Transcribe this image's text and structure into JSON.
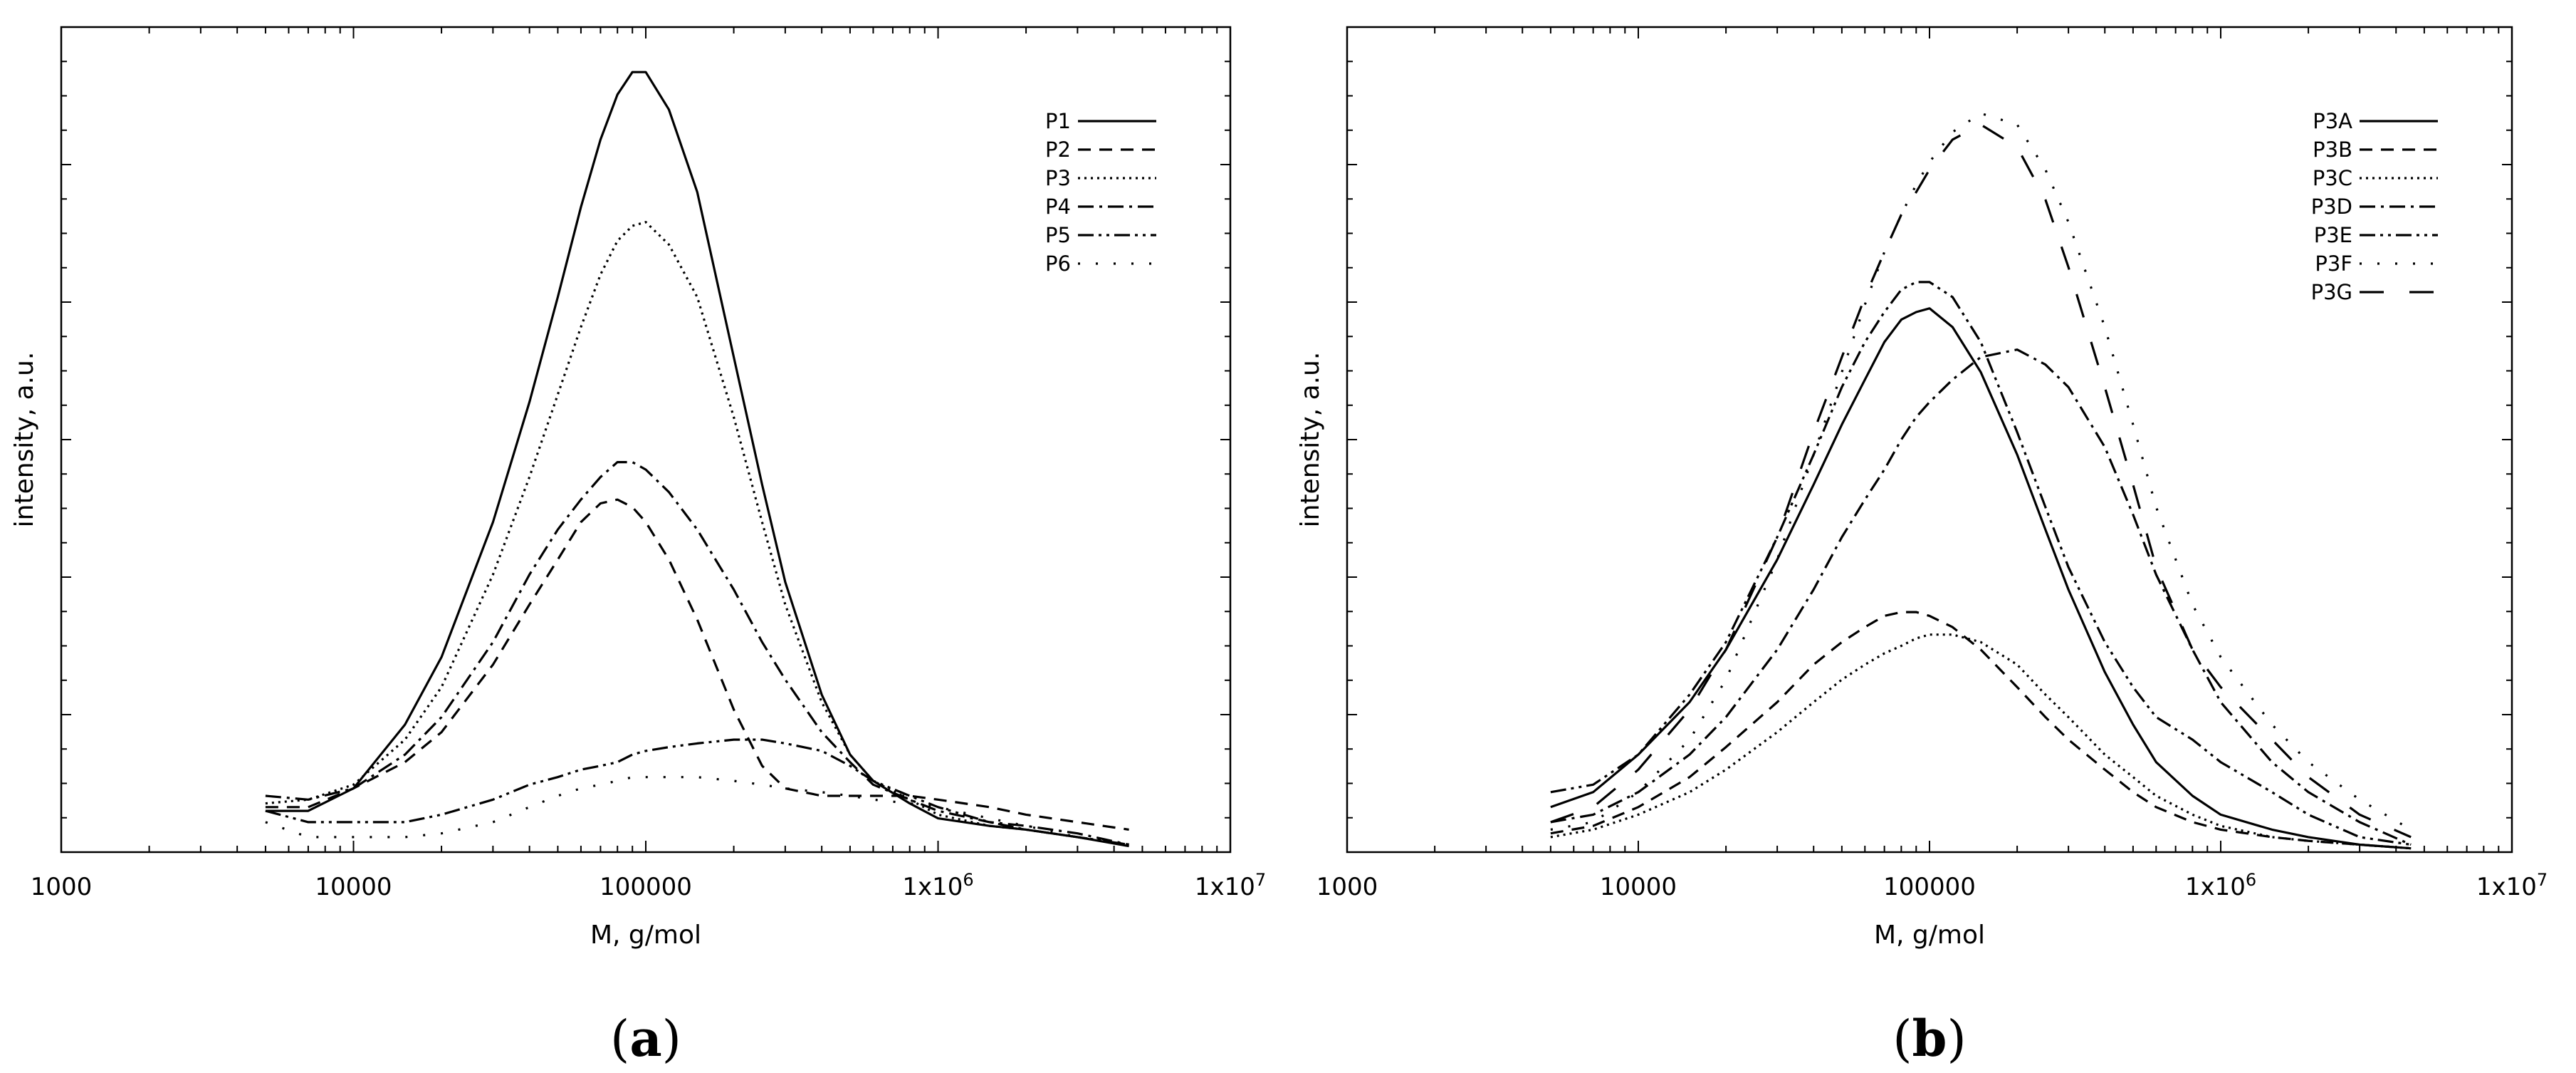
{
  "chart_data": [
    {
      "type": "line",
      "panel_label": "a",
      "xlabel": "M, g/mol",
      "ylabel": "intensity, a.u.",
      "x_scale": "log",
      "xlim": [
        1000,
        10000000
      ],
      "ylim": [
        0,
        1.1
      ],
      "y_ticks_labeled": false,
      "x_ticks": [
        {
          "value": 1000,
          "label": "1000"
        },
        {
          "value": 10000,
          "label": "10000"
        },
        {
          "value": 100000,
          "label": "100000"
        },
        {
          "value": 1000000,
          "label": "1x10",
          "exp": "6"
        },
        {
          "value": 10000000,
          "label": "1x10",
          "exp": "7"
        }
      ],
      "legend_position": "top-right",
      "series": [
        {
          "name": "P1",
          "dash": "solid",
          "x": [
            5000,
            7000,
            10000,
            15000,
            20000,
            30000,
            40000,
            50000,
            60000,
            70000,
            80000,
            90000,
            100000,
            120000,
            150000,
            200000,
            250000,
            300000,
            400000,
            500000,
            600000,
            800000,
            1000000,
            1500000,
            2000000,
            3000000,
            4500000
          ],
          "y": [
            0.055,
            0.055,
            0.085,
            0.17,
            0.26,
            0.44,
            0.6,
            0.74,
            0.86,
            0.95,
            1.01,
            1.04,
            1.04,
            0.99,
            0.88,
            0.66,
            0.49,
            0.36,
            0.21,
            0.13,
            0.095,
            0.065,
            0.045,
            0.035,
            0.03,
            0.02,
            0.008
          ]
        },
        {
          "name": "P2",
          "dash": "dashed",
          "x": [
            5000,
            7000,
            10000,
            15000,
            20000,
            30000,
            40000,
            50000,
            60000,
            70000,
            80000,
            90000,
            100000,
            120000,
            150000,
            200000,
            250000,
            300000,
            400000,
            500000,
            600000,
            800000,
            1000000,
            1500000,
            2000000,
            3000000,
            4500000
          ],
          "y": [
            0.06,
            0.06,
            0.085,
            0.12,
            0.16,
            0.25,
            0.33,
            0.39,
            0.44,
            0.465,
            0.47,
            0.46,
            0.44,
            0.39,
            0.31,
            0.19,
            0.115,
            0.085,
            0.075,
            0.075,
            0.075,
            0.075,
            0.07,
            0.06,
            0.05,
            0.04,
            0.03
          ]
        },
        {
          "name": "P3",
          "dash": "dotted",
          "x": [
            5000,
            7000,
            10000,
            15000,
            20000,
            30000,
            40000,
            50000,
            60000,
            70000,
            80000,
            90000,
            100000,
            120000,
            150000,
            200000,
            250000,
            300000,
            400000,
            500000,
            600000,
            800000,
            1000000,
            1500000,
            2000000,
            3000000,
            4500000
          ],
          "y": [
            0.065,
            0.07,
            0.09,
            0.15,
            0.22,
            0.37,
            0.5,
            0.61,
            0.7,
            0.77,
            0.815,
            0.835,
            0.84,
            0.81,
            0.74,
            0.58,
            0.44,
            0.33,
            0.2,
            0.13,
            0.095,
            0.07,
            0.05,
            0.035,
            0.03,
            0.02,
            0.01
          ]
        },
        {
          "name": "P4",
          "dash": "dashdot",
          "x": [
            5000,
            7000,
            10000,
            15000,
            20000,
            30000,
            40000,
            50000,
            60000,
            70000,
            80000,
            90000,
            100000,
            120000,
            150000,
            200000,
            250000,
            300000,
            400000,
            500000,
            600000,
            800000,
            1000000,
            1500000,
            2000000,
            3000000,
            4500000
          ],
          "y": [
            0.075,
            0.07,
            0.085,
            0.13,
            0.18,
            0.28,
            0.37,
            0.43,
            0.47,
            0.5,
            0.52,
            0.52,
            0.51,
            0.48,
            0.43,
            0.35,
            0.28,
            0.23,
            0.16,
            0.12,
            0.09,
            0.07,
            0.055,
            0.04,
            0.035,
            0.025,
            0.01
          ]
        },
        {
          "name": "P5",
          "dash": "dashdotdot",
          "x": [
            5000,
            7000,
            10000,
            15000,
            20000,
            30000,
            40000,
            50000,
            60000,
            70000,
            80000,
            90000,
            100000,
            120000,
            150000,
            200000,
            250000,
            300000,
            400000,
            500000,
            600000,
            800000,
            1000000,
            1500000,
            2000000,
            3000000,
            4500000
          ],
          "y": [
            0.055,
            0.04,
            0.04,
            0.04,
            0.05,
            0.07,
            0.09,
            0.1,
            0.11,
            0.115,
            0.12,
            0.13,
            0.135,
            0.14,
            0.145,
            0.15,
            0.15,
            0.145,
            0.135,
            0.115,
            0.095,
            0.075,
            0.06,
            0.04,
            0.03,
            0.02,
            0.01
          ]
        },
        {
          "name": "P6",
          "dash": "sparse",
          "x": [
            5000,
            7000,
            10000,
            15000,
            20000,
            30000,
            40000,
            50000,
            60000,
            70000,
            80000,
            90000,
            100000,
            120000,
            150000,
            200000,
            250000,
            300000,
            400000,
            500000,
            600000,
            800000,
            1000000,
            1500000,
            2000000,
            3000000,
            4500000
          ],
          "y": [
            0.04,
            0.02,
            0.02,
            0.02,
            0.025,
            0.04,
            0.06,
            0.075,
            0.085,
            0.09,
            0.095,
            0.1,
            0.1,
            0.1,
            0.1,
            0.095,
            0.09,
            0.085,
            0.08,
            0.075,
            0.07,
            0.065,
            0.06,
            0.045,
            0.035,
            0.02,
            0.01
          ]
        }
      ]
    },
    {
      "type": "line",
      "panel_label": "b",
      "xlabel": "M, g/mol",
      "ylabel": "intensity, a.u.",
      "x_scale": "log",
      "xlim": [
        1000,
        10000000
      ],
      "ylim": [
        0,
        1.1
      ],
      "y_ticks_labeled": false,
      "x_ticks": [
        {
          "value": 1000,
          "label": "1000"
        },
        {
          "value": 10000,
          "label": "10000"
        },
        {
          "value": 100000,
          "label": "100000"
        },
        {
          "value": 1000000,
          "label": "1x10",
          "exp": "6"
        },
        {
          "value": 10000000,
          "label": "1x10",
          "exp": "7"
        }
      ],
      "legend_position": "top-right",
      "series": [
        {
          "name": "P3A",
          "dash": "solid",
          "x": [
            5000,
            7000,
            10000,
            15000,
            20000,
            30000,
            40000,
            50000,
            60000,
            70000,
            80000,
            90000,
            100000,
            120000,
            150000,
            200000,
            250000,
            300000,
            400000,
            500000,
            600000,
            800000,
            1000000,
            1500000,
            2000000,
            3000000,
            4500000
          ],
          "y": [
            0.06,
            0.08,
            0.13,
            0.2,
            0.27,
            0.39,
            0.49,
            0.57,
            0.63,
            0.68,
            0.71,
            0.72,
            0.725,
            0.7,
            0.64,
            0.53,
            0.43,
            0.35,
            0.24,
            0.17,
            0.12,
            0.075,
            0.05,
            0.03,
            0.02,
            0.01,
            0.005
          ]
        },
        {
          "name": "P3B",
          "dash": "dashed",
          "x": [
            5000,
            7000,
            10000,
            15000,
            20000,
            30000,
            40000,
            50000,
            60000,
            70000,
            80000,
            90000,
            100000,
            120000,
            150000,
            200000,
            250000,
            300000,
            400000,
            500000,
            600000,
            800000,
            1000000,
            1500000,
            2000000,
            3000000,
            4500000
          ],
          "y": [
            0.025,
            0.035,
            0.06,
            0.1,
            0.14,
            0.2,
            0.25,
            0.28,
            0.3,
            0.315,
            0.32,
            0.32,
            0.315,
            0.3,
            0.27,
            0.22,
            0.18,
            0.15,
            0.11,
            0.08,
            0.06,
            0.04,
            0.03,
            0.02,
            0.015,
            0.01,
            0.005
          ]
        },
        {
          "name": "P3C",
          "dash": "dotted",
          "x": [
            5000,
            7000,
            10000,
            15000,
            20000,
            30000,
            40000,
            50000,
            60000,
            70000,
            80000,
            90000,
            100000,
            120000,
            150000,
            200000,
            250000,
            300000,
            400000,
            500000,
            600000,
            800000,
            1000000,
            1500000,
            2000000,
            3000000,
            4500000
          ],
          "y": [
            0.02,
            0.03,
            0.05,
            0.08,
            0.11,
            0.16,
            0.2,
            0.23,
            0.25,
            0.265,
            0.275,
            0.285,
            0.29,
            0.29,
            0.28,
            0.25,
            0.21,
            0.18,
            0.13,
            0.1,
            0.075,
            0.05,
            0.035,
            0.02,
            0.015,
            0.01,
            0.005
          ]
        },
        {
          "name": "P3D",
          "dash": "dashdot",
          "x": [
            5000,
            7000,
            10000,
            15000,
            20000,
            30000,
            40000,
            50000,
            60000,
            70000,
            80000,
            90000,
            100000,
            120000,
            150000,
            200000,
            250000,
            300000,
            400000,
            500000,
            600000,
            800000,
            1000000,
            1500000,
            2000000,
            3000000,
            4500000
          ],
          "y": [
            0.04,
            0.05,
            0.08,
            0.13,
            0.18,
            0.27,
            0.35,
            0.42,
            0.47,
            0.51,
            0.55,
            0.58,
            0.6,
            0.63,
            0.66,
            0.67,
            0.65,
            0.62,
            0.54,
            0.45,
            0.37,
            0.27,
            0.2,
            0.12,
            0.08,
            0.04,
            0.01
          ]
        },
        {
          "name": "P3E",
          "dash": "dashdotdot",
          "x": [
            5000,
            7000,
            10000,
            15000,
            20000,
            30000,
            40000,
            50000,
            60000,
            70000,
            80000,
            90000,
            100000,
            120000,
            150000,
            200000,
            250000,
            300000,
            400000,
            500000,
            600000,
            800000,
            1000000,
            1500000,
            2000000,
            3000000,
            4500000
          ],
          "y": [
            0.08,
            0.09,
            0.13,
            0.21,
            0.28,
            0.42,
            0.53,
            0.62,
            0.68,
            0.72,
            0.75,
            0.76,
            0.76,
            0.74,
            0.68,
            0.56,
            0.46,
            0.38,
            0.28,
            0.22,
            0.18,
            0.15,
            0.12,
            0.08,
            0.05,
            0.02,
            0.01
          ]
        },
        {
          "name": "P3F",
          "dash": "sparse",
          "x": [
            5000,
            7000,
            10000,
            15000,
            20000,
            30000,
            40000,
            50000,
            60000,
            70000,
            80000,
            90000,
            100000,
            120000,
            150000,
            200000,
            250000,
            300000,
            400000,
            500000,
            600000,
            800000,
            1000000,
            1500000,
            2000000,
            3000000,
            4500000
          ],
          "y": [
            0.03,
            0.04,
            0.08,
            0.15,
            0.23,
            0.39,
            0.53,
            0.64,
            0.73,
            0.8,
            0.85,
            0.89,
            0.92,
            0.96,
            0.985,
            0.97,
            0.91,
            0.84,
            0.7,
            0.57,
            0.46,
            0.33,
            0.26,
            0.17,
            0.12,
            0.07,
            0.03
          ]
        },
        {
          "name": "P3G",
          "dash": "longdash",
          "x": [
            5000,
            7000,
            10000,
            15000,
            20000,
            30000,
            40000,
            50000,
            60000,
            70000,
            80000,
            90000,
            100000,
            120000,
            150000,
            200000,
            250000,
            300000,
            400000,
            500000,
            600000,
            800000,
            1000000,
            1500000,
            2000000,
            3000000,
            4500000
          ],
          "y": [
            0.04,
            0.06,
            0.11,
            0.19,
            0.27,
            0.42,
            0.56,
            0.66,
            0.74,
            0.8,
            0.85,
            0.88,
            0.91,
            0.95,
            0.97,
            0.94,
            0.87,
            0.78,
            0.62,
            0.49,
            0.38,
            0.27,
            0.22,
            0.15,
            0.1,
            0.05,
            0.02
          ]
        }
      ]
    }
  ]
}
